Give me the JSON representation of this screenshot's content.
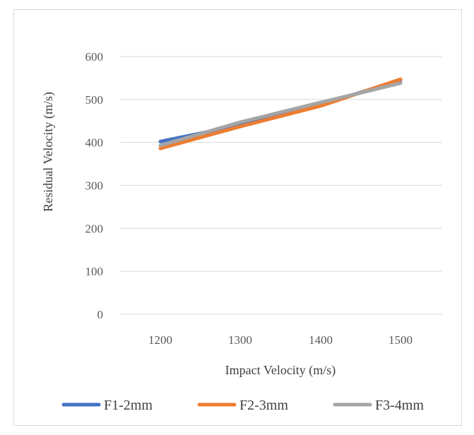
{
  "chart_data": {
    "type": "line",
    "x": [
      1200,
      1300,
      1400,
      1500
    ],
    "xlabel": "Impact Velocity (m/s)",
    "ylabel": "Residual Velocity (m/s)",
    "ylim": [
      0,
      600
    ],
    "yticks": [
      0,
      100,
      200,
      300,
      400,
      500,
      600
    ],
    "grid": true,
    "legend_position": "bottom",
    "series": [
      {
        "name": "F1-2mm",
        "color": "#4472c4",
        "values": [
          402,
          440,
          488,
          545
        ]
      },
      {
        "name": "F2-3mm",
        "color": "#ed7d31",
        "values": [
          386,
          437,
          485,
          547
        ]
      },
      {
        "name": "F3-4mm",
        "color": "#a5a5a5",
        "values": [
          393,
          447,
          493,
          538
        ]
      }
    ]
  }
}
